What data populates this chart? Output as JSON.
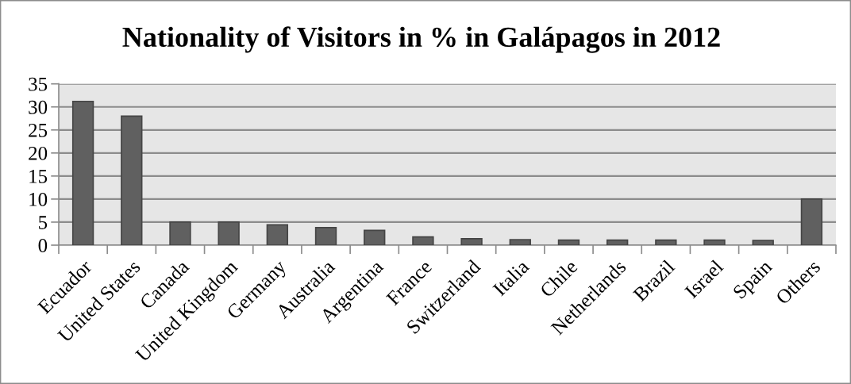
{
  "chart_data": {
    "type": "bar",
    "title": "Nationality of Visitors in % in Galápagos in 2012",
    "categories": [
      "Ecuador",
      "United States",
      "Canada",
      "United Kingdom",
      "Germany",
      "Australia",
      "Argentina",
      "France",
      "Switzerland",
      "Italia",
      "Chile",
      "Netherlands",
      "Brazil",
      "Israel",
      "Spain",
      "Others"
    ],
    "values": [
      31.2,
      28.0,
      5.0,
      5.0,
      4.4,
      3.8,
      3.2,
      1.8,
      1.4,
      1.2,
      1.1,
      1.1,
      1.1,
      1.1,
      1.0,
      10.0
    ],
    "color": "#606060",
    "ylim": [
      0,
      35
    ],
    "yticks": [
      0,
      5,
      10,
      15,
      20,
      25,
      30,
      35
    ],
    "grid": "y"
  }
}
